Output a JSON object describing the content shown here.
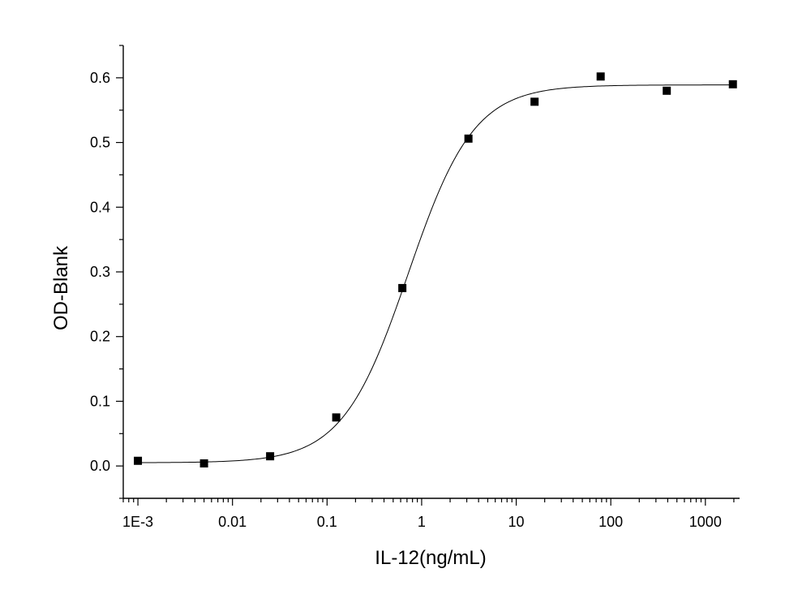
{
  "chart_data": {
    "type": "scatter",
    "title": "",
    "xlabel": "IL-12(ng/mL)",
    "ylabel": "OD-Blank",
    "xscale": "log",
    "xlim": [
      0.0007,
      2300
    ],
    "ylim": [
      -0.05,
      0.65
    ],
    "xticks": [
      0.001,
      0.01,
      0.1,
      1,
      10,
      100,
      1000
    ],
    "xtick_labels": [
      "1E-3",
      "0.01",
      "0.1",
      "1",
      "10",
      "100",
      "1000"
    ],
    "yticks": [
      0.0,
      0.1,
      0.2,
      0.3,
      0.4,
      0.5,
      0.6
    ],
    "ytick_labels": [
      "0.0",
      "0.1",
      "0.2",
      "0.3",
      "0.4",
      "0.5",
      "0.6"
    ],
    "grid": false,
    "marker_color": "#000000",
    "line_color": "#000000",
    "series": [
      {
        "marker": "square",
        "x": [
          0.001,
          0.005,
          0.025,
          0.125,
          0.625,
          3.125,
          15.625,
          78.125,
          390.625,
          1953.125
        ],
        "y": [
          0.008,
          0.004,
          0.015,
          0.075,
          0.275,
          0.506,
          0.563,
          0.602,
          0.58,
          0.59
        ]
      }
    ],
    "fit": {
      "model": "4PL",
      "bottom": 0.005,
      "top": 0.589,
      "ec50": 0.72,
      "hill": 1.25
    }
  }
}
